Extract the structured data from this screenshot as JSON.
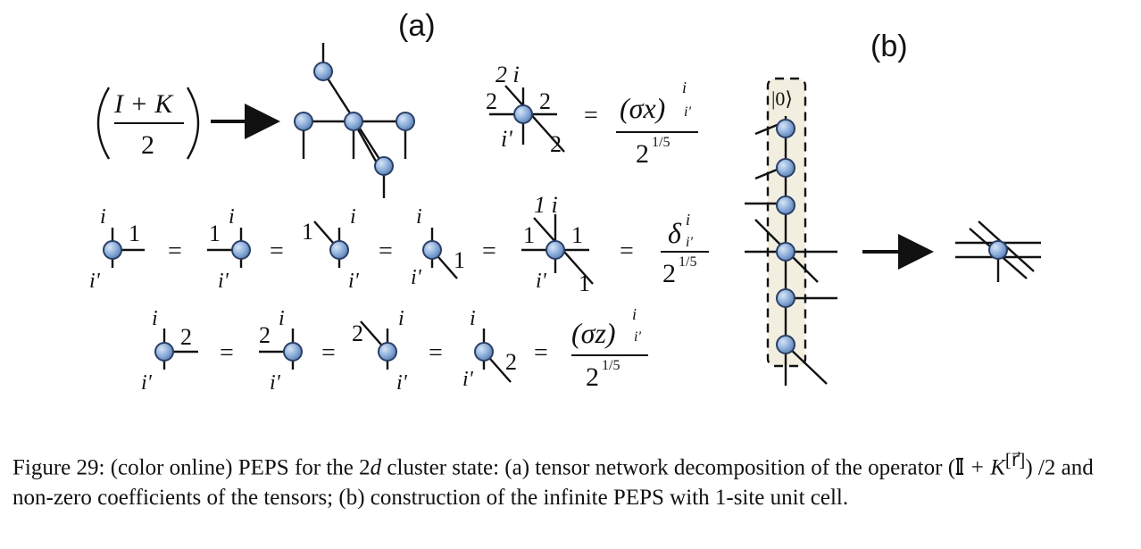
{
  "panels": {
    "a_label": "(a)",
    "b_label": "(b)"
  },
  "panel_a": {
    "row1_operator": {
      "numerator": "I + K",
      "denominator": "2"
    },
    "row1_tensor": {
      "legs_top": "2 i",
      "leg_left": "2",
      "leg_right": "2",
      "leg_bottom_left": "i'",
      "leg_bottom_right": "2",
      "rhs_numerator": "(σx)",
      "rhs_sup": "i",
      "rhs_sub": "i'",
      "rhs_denominator": "2",
      "rhs_denominator_exp": "1/5"
    },
    "row2": {
      "label": "1",
      "rhs_numerator": "δ",
      "rhs_sup": "i",
      "rhs_sub": "i'",
      "rhs_denominator": "2",
      "rhs_denominator_exp": "1/5",
      "top_index": "1 i"
    },
    "row3": {
      "label": "2",
      "rhs_numerator": "(σz)",
      "rhs_sup": "i",
      "rhs_sub": "i'",
      "rhs_denominator": "2",
      "rhs_denominator_exp": "1/5"
    },
    "index_upper": "i",
    "index_lower": "i'",
    "equals": "="
  },
  "panel_b": {
    "ket": "|0⟩"
  },
  "caption": {
    "figure_no": "Figure 29:",
    "part1": "(color online) PEPS for the 2",
    "italic_d": "d",
    "part2": "cluster state: (a) tensor network decomposition of the operator",
    "operator_open": "(",
    "operator_I": "𝕀",
    "operator_plus_K": "+ K",
    "operator_sup": "[r⃗]",
    "operator_close": ") /2",
    "part3": "and non-zero coefficients of the tensors; (b) construction of the infinite PEPS with 1-site unit cell."
  },
  "colors": {
    "node_fill": "#8fb0dc",
    "node_stroke": "#2b3f66",
    "box_fill": "#f2efe1",
    "ink": "#111111"
  }
}
